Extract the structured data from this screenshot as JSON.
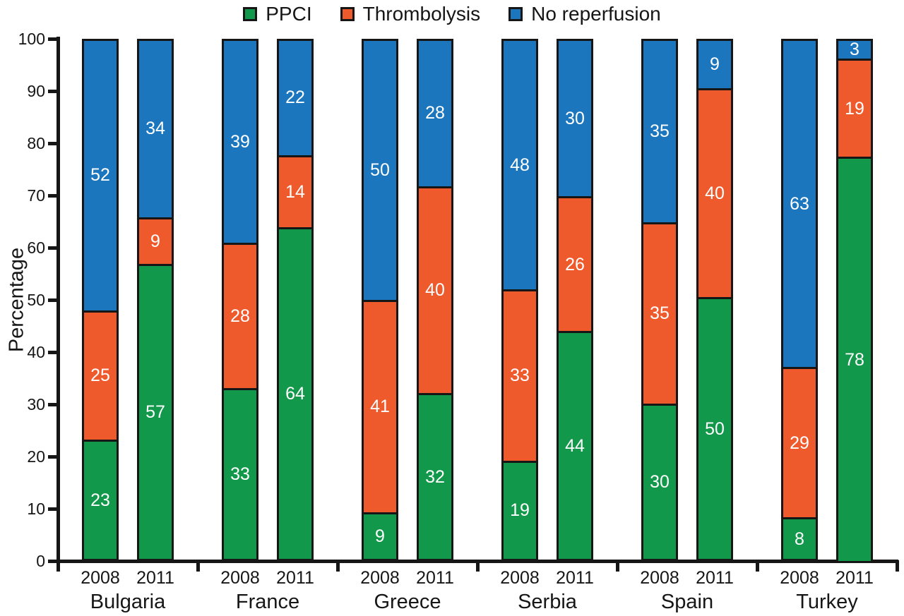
{
  "figure": {
    "background": "#ffffff",
    "text_color": "#161616"
  },
  "chart_data": {
    "type": "bar",
    "stacked": true,
    "title": "",
    "xlabel": "",
    "ylabel": "Percentage",
    "ylim": [
      0,
      100
    ],
    "yticks": [
      0,
      10,
      20,
      30,
      40,
      50,
      60,
      70,
      80,
      90,
      100
    ],
    "grid": false,
    "legend_position": "top",
    "value_label_color": "#ffffff",
    "axis_color": "#161616",
    "categories": [
      "Bulgaria",
      "France",
      "Greece",
      "Serbia",
      "Spain",
      "Turkey"
    ],
    "bar_labels": [
      "2008",
      "2011"
    ],
    "series": [
      {
        "name": "PPCI",
        "color": "#12984a",
        "values": {
          "2008": [
            23,
            33,
            9,
            19,
            30,
            8
          ],
          "2011": [
            57,
            64,
            32,
            44,
            50,
            78
          ]
        }
      },
      {
        "name": "Thrombolysis",
        "color": "#ee5a2c",
        "values": {
          "2008": [
            25,
            28,
            41,
            33,
            35,
            29
          ],
          "2011": [
            9,
            14,
            40,
            26,
            40,
            19
          ]
        }
      },
      {
        "name": "No reperfusion",
        "color": "#1b76bd",
        "values": {
          "2008": [
            52,
            39,
            50,
            48,
            35,
            63
          ],
          "2011": [
            34,
            22,
            28,
            30,
            9,
            3
          ]
        }
      }
    ]
  }
}
